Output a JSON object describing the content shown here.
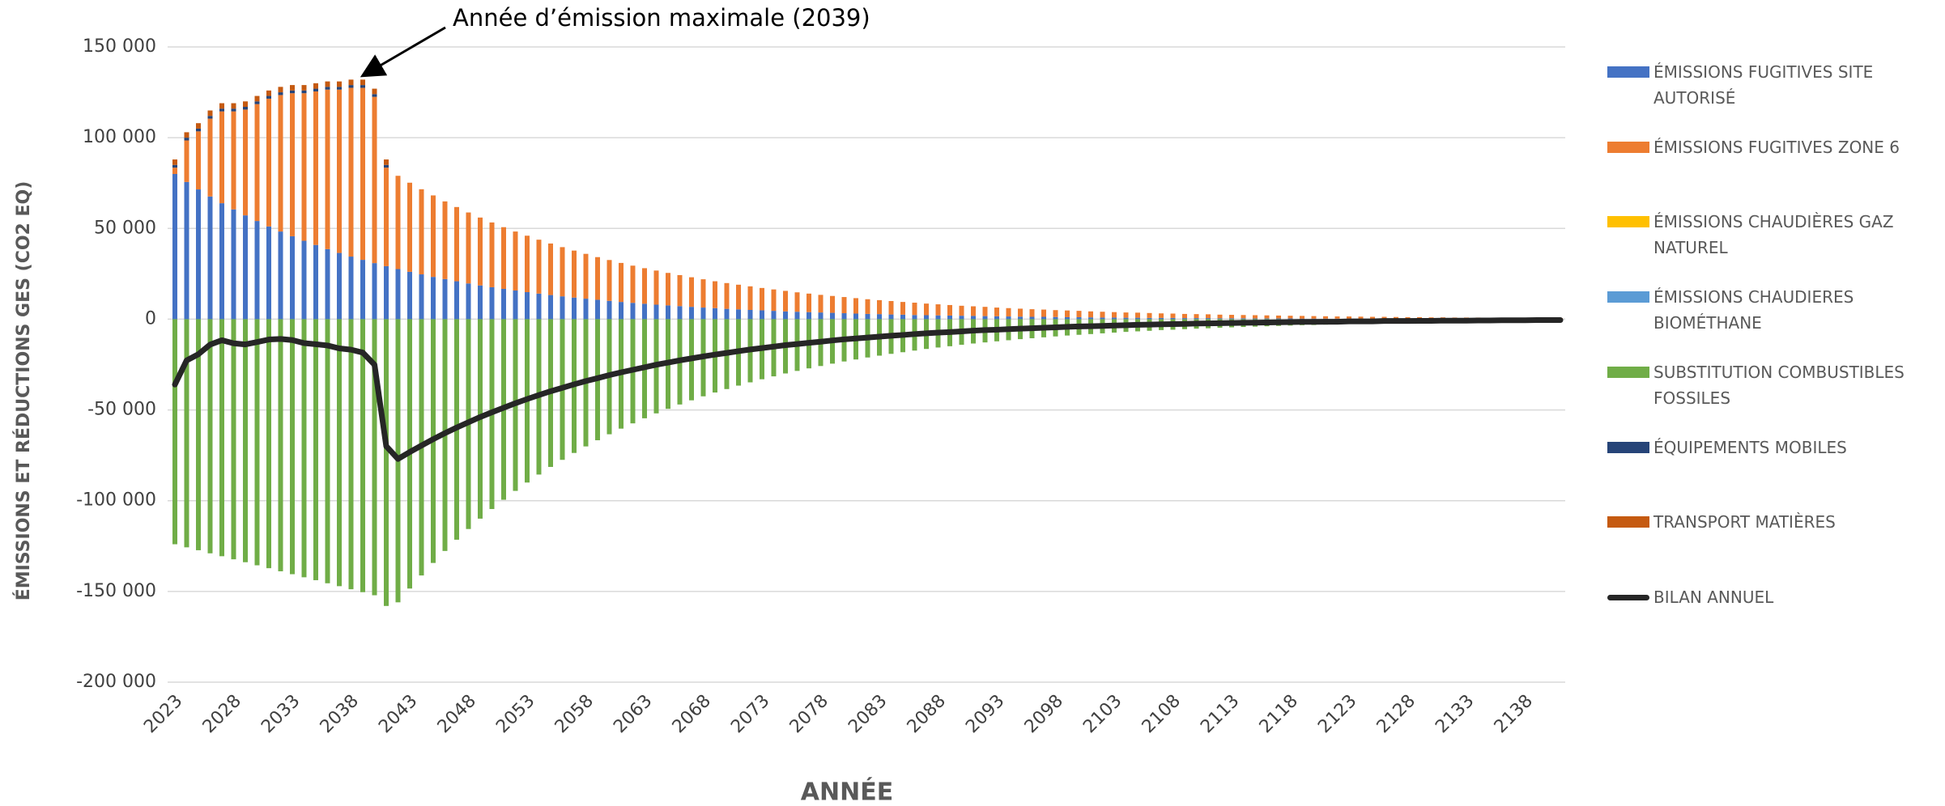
{
  "chart_data": {
    "type": "bar",
    "stacked": true,
    "annotation": "Année d’émission maximale (2039)",
    "annotation_index": 16,
    "ylabel": "ÉMISSIONS ET RÉDUCTIONS  GES (CO2 EQ)",
    "xlabel": "ANNÉE",
    "ylim": [
      -200000,
      150000
    ],
    "yticks": [
      {
        "value": 150000,
        "label": "150 000"
      },
      {
        "value": 100000,
        "label": "100 000"
      },
      {
        "value": 50000,
        "label": "50 000"
      },
      0,
      {
        "value": -50000,
        "label": "-50 000"
      },
      {
        "value": -100000,
        "label": "-100 000"
      },
      {
        "value": -150000,
        "label": "-150 000"
      },
      {
        "value": -200000,
        "label": "-200 000"
      }
    ],
    "grid": true,
    "categories": [
      "2023",
      null,
      null,
      null,
      null,
      "2028",
      null,
      null,
      null,
      null,
      "2033",
      null,
      null,
      null,
      null,
      "2038",
      null,
      null,
      null,
      null,
      "2043",
      null,
      null,
      null,
      null,
      "2048",
      null,
      null,
      null,
      null,
      "2053",
      null,
      null,
      null,
      null,
      "2058",
      null,
      null,
      null,
      null,
      "2063",
      null,
      null,
      null,
      null,
      "2068",
      null,
      null,
      null,
      null,
      "2073",
      null,
      null,
      null,
      null,
      "2078",
      null,
      null,
      null,
      null,
      "2083",
      null,
      null,
      null,
      null,
      "2088",
      null,
      null,
      null,
      null,
      "2093",
      null,
      null,
      null,
      null,
      "2098",
      null,
      null,
      null,
      null,
      "2103",
      null,
      null,
      null,
      null,
      "2108",
      null,
      null,
      null,
      null,
      "2113",
      null,
      null,
      null,
      null,
      "2118",
      null,
      null,
      null,
      null,
      "2123",
      null,
      null,
      null,
      null,
      "2128",
      null,
      null,
      null,
      null,
      "2133",
      null,
      null,
      null,
      null,
      "2138",
      null,
      null,
      null
    ],
    "series": [
      {
        "name": "ÉMISSIONS FUGITIVES SITE AUTORISÉ",
        "color": "#4472c4",
        "values": [
          80000,
          75600,
          71500,
          67600,
          63900,
          60500,
          57200,
          54100,
          51100,
          48300,
          45700,
          43200,
          40900,
          38600,
          36500,
          34500,
          32700,
          30900,
          29200,
          27600,
          26100,
          24700,
          23300,
          22100,
          20900,
          19700,
          18600,
          17600,
          16700,
          15800,
          14900,
          14100,
          13300,
          12600,
          11900,
          11300,
          10700,
          10100,
          9500,
          9000,
          8500,
          8000,
          7600,
          7200,
          6800,
          6400,
          6100,
          5700,
          5400,
          5100,
          4900,
          4600,
          4300,
          4100,
          3900,
          3700,
          3500,
          3300,
          3100,
          2900,
          2800,
          2600,
          2500,
          2300,
          2200,
          2100,
          2000,
          1900,
          1800,
          1700,
          1600,
          1500,
          1400,
          1300,
          1300,
          1200,
          1100,
          1100,
          1000,
          900,
          900,
          800,
          800,
          700,
          700,
          700,
          600,
          600,
          600,
          500,
          500,
          500,
          400,
          400,
          400,
          400,
          300,
          300,
          300,
          300,
          300,
          300,
          200,
          200,
          200,
          200,
          200,
          200,
          200,
          200,
          100,
          100,
          100,
          100,
          100,
          100,
          100,
          100,
          100
        ]
      },
      {
        "name": "ÉMISSIONS FUGITIVES ZONE 6",
        "color": "#ed7d31",
        "values": [
          3500,
          22900,
          32000,
          42900,
          50600,
          54000,
          58300,
          64400,
          70400,
          75200,
          78800,
          81300,
          84600,
          87900,
          90000,
          93000,
          94800,
          91600,
          54300,
          51400,
          49100,
          46900,
          44900,
          42800,
          40900,
          39100,
          37400,
          35700,
          34000,
          32500,
          31100,
          29700,
          28400,
          27100,
          25900,
          24700,
          23500,
          22500,
          21500,
          20500,
          19600,
          18800,
          17900,
          17100,
          16300,
          15600,
          14800,
          14200,
          13600,
          13000,
          12300,
          11800,
          11300,
          10700,
          10200,
          9700,
          9300,
          8900,
          8500,
          8100,
          7700,
          7400,
          7000,
          6800,
          6400,
          6100,
          5800,
          5500,
          5300,
          5100,
          4800,
          4600,
          4400,
          4200,
          4000,
          3800,
          3700,
          3500,
          3300,
          3200,
          3000,
          2900,
          2800,
          2700,
          2500,
          2400,
          2300,
          2200,
          2100,
          2000,
          1900,
          1800,
          1800,
          1700,
          1600,
          1500,
          1500,
          1400,
          1300,
          1200,
          1200,
          1100,
          1100,
          1100,
          1000,
          900,
          900,
          800,
          800,
          700,
          800,
          800,
          700,
          700,
          600,
          600,
          600,
          500,
          500
        ]
      },
      {
        "name": "ÉMISSIONS CHAUDIÈRES GAZ NATUREL",
        "color": "#ffc000",
        "values": [
          0,
          0,
          0,
          0,
          0,
          0,
          0,
          0,
          0,
          0,
          0,
          0,
          0,
          0,
          0,
          0,
          0,
          0,
          0,
          0,
          0,
          0,
          0,
          0,
          0,
          0,
          0,
          0,
          0,
          0,
          0,
          0,
          0,
          0,
          0,
          0,
          0,
          0,
          0,
          0,
          0,
          0,
          0,
          0,
          0,
          0,
          0,
          0,
          0,
          0,
          0,
          0,
          0,
          0,
          0,
          0,
          0,
          0,
          0,
          0,
          0,
          0,
          0,
          0,
          0,
          0,
          0,
          0,
          0,
          0,
          0,
          0,
          0,
          0,
          0,
          0,
          0,
          0,
          0,
          0,
          0,
          0,
          0,
          0,
          0,
          0,
          0,
          0,
          0,
          0,
          0,
          0,
          0,
          0,
          0,
          0,
          0,
          0,
          0,
          0,
          0,
          0,
          0,
          0,
          0,
          0,
          0,
          0,
          0,
          0,
          0,
          0,
          0,
          0,
          0,
          0,
          0,
          0,
          0
        ]
      },
      {
        "name": "ÉMISSIONS CHAUDIERES BIOMÉTHANE",
        "color": "#5b9bd5",
        "values": [
          0,
          0,
          0,
          0,
          0,
          0,
          0,
          0,
          0,
          0,
          0,
          0,
          0,
          0,
          0,
          0,
          0,
          0,
          0,
          0,
          0,
          0,
          0,
          0,
          0,
          0,
          0,
          0,
          0,
          0,
          0,
          0,
          0,
          0,
          0,
          0,
          0,
          0,
          0,
          0,
          0,
          0,
          0,
          0,
          0,
          0,
          0,
          0,
          0,
          0,
          0,
          0,
          0,
          0,
          0,
          0,
          0,
          0,
          0,
          0,
          0,
          0,
          0,
          0,
          0,
          0,
          0,
          0,
          0,
          0,
          0,
          0,
          0,
          0,
          0,
          0,
          0,
          0,
          0,
          0,
          0,
          0,
          0,
          0,
          0,
          0,
          0,
          0,
          0,
          0,
          0,
          0,
          0,
          0,
          0,
          0,
          0,
          0,
          0,
          0,
          0,
          0,
          0,
          0,
          0,
          0,
          0,
          0,
          0,
          0,
          0,
          0,
          0,
          0,
          0,
          0,
          0,
          0,
          0
        ]
      },
      {
        "name": "SUBSTITUTION COMBUSTIBLES FOSSILES",
        "color": "#70ad47",
        "values": [
          -124000,
          -125700,
          -127300,
          -129000,
          -130600,
          -132300,
          -133900,
          -135600,
          -137200,
          -138900,
          -140500,
          -142200,
          -143800,
          -145500,
          -147100,
          -148800,
          -150400,
          -152100,
          -158000,
          -156000,
          -148400,
          -141200,
          -134300,
          -127700,
          -121500,
          -115600,
          -109900,
          -104600,
          -99500,
          -94600,
          -90000,
          -85600,
          -81400,
          -77500,
          -73700,
          -70100,
          -66700,
          -63400,
          -60300,
          -57400,
          -54600,
          -51900,
          -49400,
          -47000,
          -44700,
          -42500,
          -40400,
          -38500,
          -36600,
          -34800,
          -33100,
          -31500,
          -29900,
          -28500,
          -27100,
          -25800,
          -24500,
          -23300,
          -22200,
          -21100,
          -20100,
          -19100,
          -18200,
          -17300,
          -16400,
          -15600,
          -14900,
          -14100,
          -13400,
          -12800,
          -12200,
          -11600,
          -11000,
          -10500,
          -10000,
          -9500,
          -9000,
          -8600,
          -8200,
          -7800,
          -7400,
          -7000,
          -6700,
          -6400,
          -6000,
          -5800,
          -5500,
          -5200,
          -5000,
          -4700,
          -4500,
          -4300,
          -4100,
          -3900,
          -3700,
          -3500,
          -3300,
          -3200,
          -3000,
          -2900,
          -2700,
          -2600,
          -2500,
          -2300,
          -2200,
          -2100,
          -2000,
          -1900,
          -1800,
          -1700,
          -1700,
          -1600,
          -1500,
          -1400,
          -1300,
          -1300,
          -1200,
          -1100,
          -1100
        ]
      },
      {
        "name": "ÉQUIPEMENTS MOBILES",
        "color": "#264478",
        "values": [
          1500,
          1500,
          1500,
          1500,
          1500,
          1500,
          1500,
          1500,
          1500,
          1500,
          1500,
          1500,
          1500,
          1500,
          1500,
          1500,
          1500,
          1500,
          1500,
          0,
          0,
          0,
          0,
          0,
          0,
          0,
          0,
          0,
          0,
          0,
          0,
          0,
          0,
          0,
          0,
          0,
          0,
          0,
          0,
          0,
          0,
          0,
          0,
          0,
          0,
          0,
          0,
          0,
          0,
          0,
          0,
          0,
          0,
          0,
          0,
          0,
          0,
          0,
          0,
          0,
          0,
          0,
          0,
          0,
          0,
          0,
          0,
          0,
          0,
          0,
          0,
          0,
          0,
          0,
          0,
          0,
          0,
          0,
          0,
          0,
          0,
          0,
          0,
          0,
          0,
          0,
          0,
          0,
          0,
          0,
          0,
          0,
          0,
          0,
          0,
          0,
          0,
          0,
          0,
          0,
          0,
          0,
          0,
          0,
          0,
          0,
          0,
          0,
          0,
          0,
          0,
          0,
          0,
          0,
          0,
          0,
          0,
          0,
          0
        ]
      },
      {
        "name": "TRANSPORT MATIÈRES",
        "color": "#c55a11",
        "values": [
          3000,
          3000,
          3000,
          3000,
          3000,
          3000,
          3000,
          3000,
          3000,
          3000,
          3000,
          3000,
          3000,
          3000,
          3000,
          3000,
          3000,
          3000,
          3000,
          0,
          0,
          0,
          0,
          0,
          0,
          0,
          0,
          0,
          0,
          0,
          0,
          0,
          0,
          0,
          0,
          0,
          0,
          0,
          0,
          0,
          0,
          0,
          0,
          0,
          0,
          0,
          0,
          0,
          0,
          0,
          0,
          0,
          0,
          0,
          0,
          0,
          0,
          0,
          0,
          0,
          0,
          0,
          0,
          0,
          0,
          0,
          0,
          0,
          0,
          0,
          0,
          0,
          0,
          0,
          0,
          0,
          0,
          0,
          0,
          0,
          0,
          0,
          0,
          0,
          0,
          0,
          0,
          0,
          0,
          0,
          0,
          0,
          0,
          0,
          0,
          0,
          0,
          0,
          0,
          0,
          0,
          0,
          0,
          0,
          0,
          0,
          0,
          0,
          0,
          0,
          0,
          0,
          0,
          0,
          0,
          0,
          0,
          0,
          0
        ]
      },
      {
        "name": "BILAN ANNUEL",
        "type": "line",
        "color": "#262626",
        "values": [
          -36000,
          -22700,
          -19300,
          -14000,
          -11600,
          -13300,
          -13900,
          -12600,
          -11200,
          -10900,
          -11500,
          -13200,
          -13800,
          -14500,
          -16100,
          -16800,
          -18400,
          -25100,
          -70000,
          -77000,
          -73200,
          -69600,
          -66100,
          -62800,
          -59700,
          -56800,
          -53900,
          -51300,
          -48800,
          -46300,
          -44000,
          -41800,
          -39700,
          -37800,
          -35900,
          -34100,
          -32500,
          -30800,
          -29300,
          -27900,
          -26500,
          -25100,
          -23900,
          -22700,
          -21600,
          -20500,
          -19500,
          -18600,
          -17600,
          -16700,
          -15900,
          -15100,
          -14300,
          -13700,
          -13000,
          -12400,
          -11700,
          -11100,
          -10600,
          -10100,
          -9600,
          -9100,
          -8700,
          -8200,
          -7800,
          -7400,
          -7100,
          -6700,
          -6300,
          -6000,
          -5800,
          -5500,
          -5200,
          -5000,
          -4700,
          -4500,
          -4200,
          -4000,
          -3900,
          -3700,
          -3500,
          -3300,
          -3100,
          -3000,
          -2800,
          -2700,
          -2600,
          -2400,
          -2300,
          -2200,
          -2100,
          -2000,
          -1900,
          -1800,
          -1700,
          -1600,
          -1500,
          -1500,
          -1400,
          -1400,
          -1200,
          -1200,
          -1200,
          -1000,
          -1000,
          -1000,
          -900,
          -900,
          -800,
          -800,
          -800,
          -700,
          -700,
          -600,
          -600,
          -600,
          -500,
          -500,
          -500
        ]
      }
    ]
  }
}
